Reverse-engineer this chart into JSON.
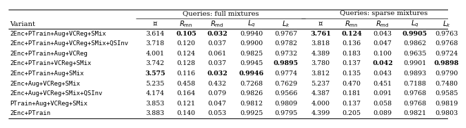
{
  "title_full": "Queries: full mixtures",
  "title_sparse": "Queries: sparse mixtures",
  "rows": [
    {
      "variant": "2Enc+PTrain+Aug+VCReg+SMix",
      "full": [
        "3.614",
        "0.105",
        "0.032",
        "0.9940",
        "0.9767"
      ],
      "sparse": [
        "3.761",
        "0.124",
        "0.043",
        "0.9905",
        "0.9763"
      ],
      "bold_full": [
        false,
        true,
        true,
        false,
        false
      ],
      "bold_sparse": [
        true,
        true,
        false,
        true,
        false
      ]
    },
    {
      "variant": "2Enc+PTrain+Aug+VCReg+SMix+QSInv",
      "full": [
        "3.718",
        "0.120",
        "0.037",
        "0.9900",
        "0.9782"
      ],
      "sparse": [
        "3.818",
        "0.136",
        "0.047",
        "0.9862",
        "0.9768"
      ],
      "bold_full": [
        false,
        false,
        false,
        false,
        false
      ],
      "bold_sparse": [
        false,
        false,
        false,
        false,
        false
      ]
    },
    {
      "variant": "2Enc+PTrain+Aug+VCReg",
      "full": [
        "4.001",
        "0.124",
        "0.061",
        "0.9825",
        "0.9732"
      ],
      "sparse": [
        "4.389",
        "0.183",
        "0.100",
        "0.9635",
        "0.9724"
      ],
      "bold_full": [
        false,
        false,
        false,
        false,
        false
      ],
      "bold_sparse": [
        false,
        false,
        false,
        false,
        false
      ]
    },
    {
      "variant": "2Enc+PTrain+VCReg+SMix",
      "full": [
        "3.742",
        "0.128",
        "0.037",
        "0.9945",
        "0.9895"
      ],
      "sparse": [
        "3.780",
        "0.137",
        "0.042",
        "0.9901",
        "0.9898"
      ],
      "bold_full": [
        false,
        false,
        false,
        false,
        true
      ],
      "bold_sparse": [
        false,
        false,
        true,
        false,
        true
      ]
    },
    {
      "variant": "2Enc+PTrain+Aug+SMix",
      "full": [
        "3.575",
        "0.116",
        "0.032",
        "0.9946",
        "0.9774"
      ],
      "sparse": [
        "3.812",
        "0.135",
        "0.043",
        "0.9893",
        "0.9790"
      ],
      "bold_full": [
        true,
        false,
        true,
        true,
        false
      ],
      "bold_sparse": [
        false,
        false,
        false,
        false,
        false
      ]
    },
    {
      "variant": "2Enc+Aug+VCReg+SMix",
      "full": [
        "5.235",
        "0.458",
        "0.432",
        "0.7268",
        "0.7629"
      ],
      "sparse": [
        "5.237",
        "0.470",
        "0.451",
        "0.7188",
        "0.7480"
      ],
      "bold_full": [
        false,
        false,
        false,
        false,
        false
      ],
      "bold_sparse": [
        false,
        false,
        false,
        false,
        false
      ]
    },
    {
      "variant": "2Enc+Aug+VCReg+SMix+QSInv",
      "full": [
        "4.174",
        "0.164",
        "0.079",
        "0.9826",
        "0.9566"
      ],
      "sparse": [
        "4.387",
        "0.181",
        "0.091",
        "0.9768",
        "0.9585"
      ],
      "bold_full": [
        false,
        false,
        false,
        false,
        false
      ],
      "bold_sparse": [
        false,
        false,
        false,
        false,
        false
      ]
    },
    {
      "variant": "PTrain+Aug+VCReg+SMix",
      "full": [
        "3.853",
        "0.121",
        "0.047",
        "0.9812",
        "0.9809"
      ],
      "sparse": [
        "4.000",
        "0.137",
        "0.058",
        "0.9768",
        "0.9819"
      ],
      "bold_full": [
        false,
        false,
        false,
        false,
        false
      ],
      "bold_sparse": [
        false,
        false,
        false,
        false,
        false
      ]
    },
    {
      "variant": "2Enc+PTrain",
      "full": [
        "3.883",
        "0.140",
        "0.053",
        "0.9925",
        "0.9795"
      ],
      "sparse": [
        "4.399",
        "0.205",
        "0.089",
        "0.9821",
        "0.9803"
      ],
      "bold_full": [
        false,
        false,
        false,
        false,
        false
      ],
      "bold_sparse": [
        false,
        false,
        false,
        false,
        false
      ]
    }
  ],
  "bg_color": "#ffffff",
  "text_color": "#000000",
  "header_font_size": 7.2,
  "row_font_size": 6.8,
  "variant_font_size": 6.5
}
